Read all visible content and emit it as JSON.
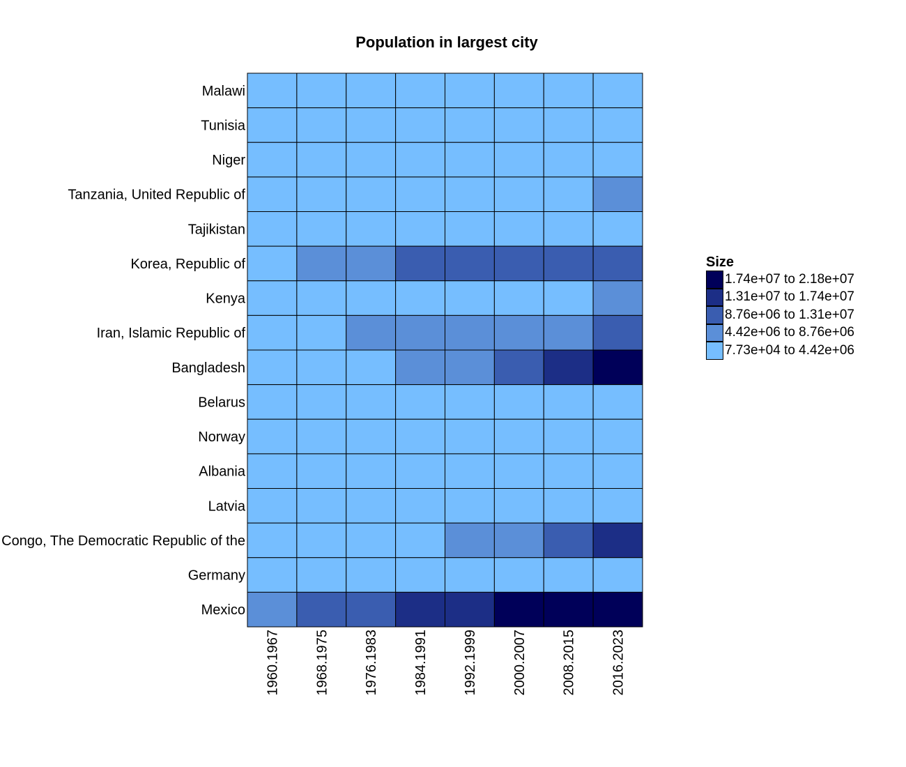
{
  "chart_data": {
    "type": "heatmap",
    "title": "Population in largest city",
    "xlabel": "",
    "ylabel": "",
    "x": [
      "1960.1967",
      "1968.1975",
      "1976.1983",
      "1984.1991",
      "1992.1999",
      "2000.2007",
      "2008.2015",
      "2016.2023"
    ],
    "y": [
      "Malawi",
      "Tunisia",
      "Niger",
      "Tanzania, United Republic of",
      "Tajikistan",
      "Korea, Republic of",
      "Kenya",
      "Iran, Islamic Republic of",
      "Bangladesh",
      "Belarus",
      "Norway",
      "Albania",
      "Latvia",
      "Congo, The Democratic Republic of the",
      "Germany",
      "Mexico"
    ],
    "values": [
      [
        1,
        1,
        1,
        1,
        1,
        1,
        1,
        1
      ],
      [
        1,
        1,
        1,
        1,
        1,
        1,
        1,
        1
      ],
      [
        1,
        1,
        1,
        1,
        1,
        1,
        1,
        1
      ],
      [
        1,
        1,
        1,
        1,
        1,
        1,
        1,
        2
      ],
      [
        1,
        1,
        1,
        1,
        1,
        1,
        1,
        1
      ],
      [
        1,
        2,
        2,
        3,
        3,
        3,
        3,
        3
      ],
      [
        1,
        1,
        1,
        1,
        1,
        1,
        1,
        2
      ],
      [
        1,
        1,
        2,
        2,
        2,
        2,
        2,
        3
      ],
      [
        1,
        1,
        1,
        2,
        2,
        3,
        4,
        5
      ],
      [
        1,
        1,
        1,
        1,
        1,
        1,
        1,
        1
      ],
      [
        1,
        1,
        1,
        1,
        1,
        1,
        1,
        1
      ],
      [
        1,
        1,
        1,
        1,
        1,
        1,
        1,
        1
      ],
      [
        1,
        1,
        1,
        1,
        1,
        1,
        1,
        1
      ],
      [
        1,
        1,
        1,
        1,
        2,
        2,
        3,
        4
      ],
      [
        1,
        1,
        1,
        1,
        1,
        1,
        1,
        1
      ],
      [
        2,
        3,
        3,
        4,
        4,
        5,
        5,
        5
      ]
    ],
    "value_meaning": "legend bin index, 1 = lowest bin, 5 = highest bin",
    "legend": {
      "title": "Size",
      "position": "right",
      "bins": [
        {
          "level": 5,
          "label": "1.74e+07 to 2.18e+07",
          "color": "#000059"
        },
        {
          "level": 4,
          "label": "1.31e+07 to 1.74e+07",
          "color": "#1c2e86"
        },
        {
          "level": 3,
          "label": "8.76e+06 to 1.31e+07",
          "color": "#3a5db0"
        },
        {
          "level": 2,
          "label": "4.42e+06 to 8.76e+06",
          "color": "#5b8fd8"
        },
        {
          "level": 1,
          "label": "7.73e+04 to 4.42e+06",
          "color": "#76beff"
        }
      ]
    },
    "grid": false
  }
}
